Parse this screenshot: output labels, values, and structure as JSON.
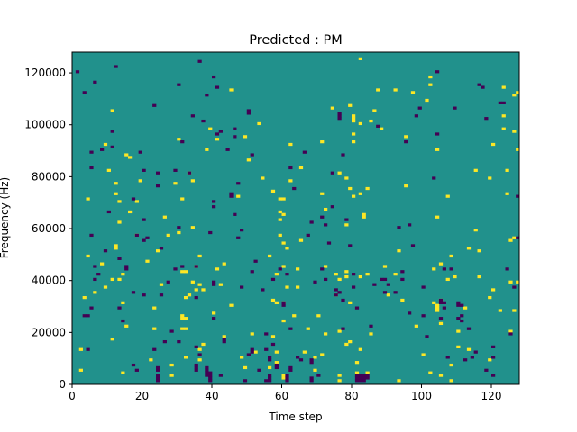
{
  "chart_data": {
    "type": "heatmap",
    "title": "Predicted : PM",
    "xlabel": "Time step",
    "ylabel": "Frequency (Hz)",
    "xlim": [
      0,
      128
    ],
    "ylim": [
      0,
      128000
    ],
    "xticks": [
      0,
      20,
      40,
      60,
      80,
      100,
      120
    ],
    "yticks": [
      0,
      20000,
      40000,
      60000,
      80000,
      100000,
      120000
    ],
    "grid": false,
    "n_time_steps": 128,
    "n_freq_bins": 128,
    "colormap": "viridis",
    "colors": {
      "background_value": "#21918c",
      "high_value": "#fde725",
      "low_value": "#440154"
    },
    "background_level": 0,
    "cell_levels": {
      "high": 1,
      "low": -1
    },
    "high_cells": [
      [
        2,
        5
      ],
      [
        2,
        13
      ],
      [
        3,
        33
      ],
      [
        4,
        49
      ],
      [
        4,
        71
      ],
      [
        6,
        35
      ],
      [
        8,
        46
      ],
      [
        9,
        37
      ],
      [
        9,
        92
      ],
      [
        10,
        82
      ],
      [
        11,
        17
      ],
      [
        11,
        40
      ],
      [
        11,
        105
      ],
      [
        12,
        52
      ],
      [
        12,
        53
      ],
      [
        12,
        73
      ],
      [
        12,
        77
      ],
      [
        13,
        40
      ],
      [
        13,
        62
      ],
      [
        13,
        70
      ],
      [
        14,
        4
      ],
      [
        14,
        31
      ],
      [
        14,
        42
      ],
      [
        15,
        22
      ],
      [
        15,
        88
      ],
      [
        16,
        66
      ],
      [
        16,
        87
      ],
      [
        18,
        57
      ],
      [
        18,
        70
      ],
      [
        19,
        78
      ],
      [
        21,
        47
      ],
      [
        22,
        9
      ],
      [
        23,
        21
      ],
      [
        23,
        29
      ],
      [
        24,
        51
      ],
      [
        25,
        38
      ],
      [
        26,
        64
      ],
      [
        27,
        57
      ],
      [
        28,
        3
      ],
      [
        28,
        7
      ],
      [
        29,
        77
      ],
      [
        30,
        58
      ],
      [
        30,
        94
      ],
      [
        31,
        21
      ],
      [
        31,
        25
      ],
      [
        31,
        26
      ],
      [
        31,
        43
      ],
      [
        31,
        71
      ],
      [
        32,
        10
      ],
      [
        32,
        21
      ],
      [
        32,
        25
      ],
      [
        32,
        33
      ],
      [
        32,
        43
      ],
      [
        33,
        34
      ],
      [
        33,
        81
      ],
      [
        34,
        39
      ],
      [
        34,
        60
      ],
      [
        34,
        78
      ],
      [
        35,
        36
      ],
      [
        35,
        45
      ],
      [
        36,
        9
      ],
      [
        36,
        13
      ],
      [
        36,
        38
      ],
      [
        36,
        49
      ],
      [
        37,
        15
      ],
      [
        37,
        36
      ],
      [
        38,
        90
      ],
      [
        39,
        98
      ],
      [
        40,
        27
      ],
      [
        41,
        44
      ],
      [
        41,
        94
      ],
      [
        42,
        38
      ],
      [
        43,
        18
      ],
      [
        43,
        46
      ],
      [
        45,
        30
      ],
      [
        45,
        113
      ],
      [
        47,
        72
      ],
      [
        48,
        10
      ],
      [
        49,
        6
      ],
      [
        49,
        95
      ],
      [
        50,
        86
      ],
      [
        51,
        19
      ],
      [
        52,
        12
      ],
      [
        53,
        100
      ],
      [
        54,
        79
      ],
      [
        56,
        6
      ],
      [
        56,
        49
      ],
      [
        57,
        18
      ],
      [
        57,
        32
      ],
      [
        57,
        74
      ],
      [
        58,
        8
      ],
      [
        58,
        12
      ],
      [
        58,
        31
      ],
      [
        58,
        42
      ],
      [
        59,
        57
      ],
      [
        59,
        63
      ],
      [
        59,
        66
      ],
      [
        59,
        71
      ],
      [
        60,
        2
      ],
      [
        60,
        3
      ],
      [
        60,
        24
      ],
      [
        60,
        31
      ],
      [
        60,
        45
      ],
      [
        60,
        54
      ],
      [
        60,
        65
      ],
      [
        60,
        71
      ],
      [
        61,
        37
      ],
      [
        61,
        52
      ],
      [
        62,
        78
      ],
      [
        62,
        92
      ],
      [
        63,
        26
      ],
      [
        64,
        37
      ],
      [
        64,
        44
      ],
      [
        65,
        55
      ],
      [
        65,
        83
      ],
      [
        66,
        12
      ],
      [
        67,
        21
      ],
      [
        69,
        5
      ],
      [
        69,
        10
      ],
      [
        70,
        26
      ],
      [
        71,
        11
      ],
      [
        71,
        73
      ],
      [
        71,
        93
      ],
      [
        72,
        19
      ],
      [
        72,
        45
      ],
      [
        72,
        67
      ],
      [
        74,
        106
      ],
      [
        75,
        34
      ],
      [
        75,
        42
      ],
      [
        76,
        1
      ],
      [
        76,
        3
      ],
      [
        76,
        20
      ],
      [
        76,
        40
      ],
      [
        76,
        81
      ],
      [
        78,
        15
      ],
      [
        78,
        41
      ],
      [
        78,
        43
      ],
      [
        78,
        61
      ],
      [
        78,
        79
      ],
      [
        79,
        16
      ],
      [
        79,
        31
      ],
      [
        79,
        75
      ],
      [
        79,
        107
      ],
      [
        80,
        72
      ],
      [
        80,
        93
      ],
      [
        80,
        96
      ],
      [
        80,
        101
      ],
      [
        80,
        102
      ],
      [
        80,
        103
      ],
      [
        81,
        4
      ],
      [
        81,
        8
      ],
      [
        82,
        13
      ],
      [
        82,
        41
      ],
      [
        82,
        73
      ],
      [
        82,
        100
      ],
      [
        82,
        125
      ],
      [
        83,
        64
      ],
      [
        83,
        65
      ],
      [
        84,
        4
      ],
      [
        84,
        42
      ],
      [
        84,
        75
      ],
      [
        85,
        19
      ],
      [
        85,
        101
      ],
      [
        86,
        105
      ],
      [
        87,
        113
      ],
      [
        88,
        98
      ],
      [
        89,
        45
      ],
      [
        90,
        34
      ],
      [
        92,
        42
      ],
      [
        92,
        113
      ],
      [
        93,
        1
      ],
      [
        93,
        51
      ],
      [
        94,
        32
      ],
      [
        95,
        76
      ],
      [
        95,
        95
      ],
      [
        97,
        112
      ],
      [
        98,
        22
      ],
      [
        100,
        11
      ],
      [
        101,
        109
      ],
      [
        102,
        4
      ],
      [
        102,
        115
      ],
      [
        102,
        118
      ],
      [
        103,
        31
      ],
      [
        103,
        44
      ],
      [
        104,
        28
      ],
      [
        104,
        29
      ],
      [
        104,
        30
      ],
      [
        104,
        64
      ],
      [
        104,
        90
      ],
      [
        105,
        3
      ],
      [
        105,
        23
      ],
      [
        105,
        32
      ],
      [
        105,
        46
      ],
      [
        107,
        40
      ],
      [
        107,
        72
      ],
      [
        108,
        1
      ],
      [
        108,
        7
      ],
      [
        108,
        49
      ],
      [
        109,
        41
      ],
      [
        110,
        14
      ],
      [
        110,
        20
      ],
      [
        112,
        29
      ],
      [
        113,
        13
      ],
      [
        113,
        52
      ],
      [
        115,
        59
      ],
      [
        115,
        82
      ],
      [
        116,
        41
      ],
      [
        116,
        51
      ],
      [
        119,
        9
      ],
      [
        119,
        33
      ],
      [
        119,
        79
      ],
      [
        120,
        36
      ],
      [
        120,
        92
      ],
      [
        122,
        28
      ],
      [
        123,
        98
      ],
      [
        123,
        103
      ],
      [
        123,
        114
      ],
      [
        124,
        73
      ],
      [
        124,
        82
      ],
      [
        125,
        20
      ],
      [
        125,
        39
      ],
      [
        125,
        55
      ],
      [
        126,
        28
      ],
      [
        126,
        56
      ],
      [
        126,
        97
      ],
      [
        126,
        111
      ],
      [
        127,
        39
      ],
      [
        127,
        90
      ],
      [
        127,
        112
      ]
    ],
    "low_cells": [
      [
        1,
        120
      ],
      [
        3,
        26
      ],
      [
        3,
        112
      ],
      [
        4,
        13
      ],
      [
        4,
        26
      ],
      [
        5,
        29
      ],
      [
        5,
        57
      ],
      [
        5,
        83
      ],
      [
        5,
        89
      ],
      [
        6,
        116
      ],
      [
        6,
        45
      ],
      [
        6,
        40
      ],
      [
        7,
        42
      ],
      [
        8,
        90
      ],
      [
        9,
        51
      ],
      [
        10,
        66
      ],
      [
        11,
        91
      ],
      [
        11,
        97
      ],
      [
        12,
        122
      ],
      [
        13,
        29
      ],
      [
        13,
        48
      ],
      [
        14,
        24
      ],
      [
        15,
        44
      ],
      [
        15,
        45
      ],
      [
        17,
        7
      ],
      [
        17,
        35
      ],
      [
        17,
        71
      ],
      [
        18,
        5
      ],
      [
        18,
        57
      ],
      [
        19,
        89
      ],
      [
        20,
        82
      ],
      [
        20,
        63
      ],
      [
        20,
        55
      ],
      [
        20,
        34
      ],
      [
        21,
        56
      ],
      [
        23,
        13
      ],
      [
        23,
        107
      ],
      [
        24,
        1
      ],
      [
        24,
        2
      ],
      [
        24,
        3
      ],
      [
        24,
        5
      ],
      [
        24,
        6
      ],
      [
        24,
        76
      ],
      [
        24,
        81
      ],
      [
        25,
        52
      ],
      [
        25,
        34
      ],
      [
        26,
        16
      ],
      [
        27,
        39
      ],
      [
        28,
        20
      ],
      [
        29,
        44
      ],
      [
        29,
        82
      ],
      [
        30,
        115
      ],
      [
        30,
        60
      ],
      [
        30,
        16
      ],
      [
        31,
        93
      ],
      [
        31,
        45
      ],
      [
        33,
        81
      ],
      [
        34,
        103
      ],
      [
        35,
        5
      ],
      [
        35,
        6
      ],
      [
        35,
        7
      ],
      [
        35,
        14
      ],
      [
        35,
        33
      ],
      [
        35,
        45
      ],
      [
        36,
        11
      ],
      [
        36,
        124
      ],
      [
        37,
        101
      ],
      [
        38,
        3
      ],
      [
        38,
        4
      ],
      [
        38,
        5
      ],
      [
        38,
        6
      ],
      [
        38,
        111
      ],
      [
        39,
        1
      ],
      [
        39,
        2
      ],
      [
        39,
        3
      ],
      [
        39,
        4
      ],
      [
        39,
        58
      ],
      [
        40,
        25
      ],
      [
        40,
        38
      ],
      [
        40,
        39
      ],
      [
        40,
        68
      ],
      [
        40,
        70
      ],
      [
        40,
        118
      ],
      [
        41,
        96
      ],
      [
        41,
        114
      ],
      [
        42,
        3
      ],
      [
        42,
        97
      ],
      [
        43,
        16
      ],
      [
        43,
        17
      ],
      [
        44,
        90
      ],
      [
        45,
        73
      ],
      [
        45,
        72
      ],
      [
        46,
        65
      ],
      [
        46,
        95
      ],
      [
        46,
        98
      ],
      [
        47,
        56
      ],
      [
        47,
        77
      ],
      [
        48,
        37
      ],
      [
        48,
        59
      ],
      [
        49,
        1
      ],
      [
        50,
        11
      ],
      [
        50,
        104
      ],
      [
        50,
        105
      ],
      [
        51,
        12
      ],
      [
        51,
        13
      ],
      [
        51,
        88
      ],
      [
        51,
        43
      ],
      [
        52,
        47
      ],
      [
        53,
        5
      ],
      [
        54,
        36
      ],
      [
        55,
        13
      ],
      [
        55,
        1
      ],
      [
        55,
        19
      ],
      [
        56,
        10
      ],
      [
        56,
        9
      ],
      [
        56,
        1
      ],
      [
        56,
        2
      ],
      [
        56,
        3
      ],
      [
        57,
        15
      ],
      [
        57,
        40
      ],
      [
        58,
        6
      ],
      [
        58,
        7
      ],
      [
        59,
        44
      ],
      [
        60,
        30
      ],
      [
        60,
        31
      ],
      [
        61,
        1
      ],
      [
        61,
        2
      ],
      [
        61,
        3
      ],
      [
        61,
        42
      ],
      [
        62,
        6
      ],
      [
        62,
        5
      ],
      [
        62,
        21
      ],
      [
        62,
        83
      ],
      [
        63,
        75
      ],
      [
        64,
        10
      ],
      [
        65,
        9
      ],
      [
        66,
        89
      ],
      [
        67,
        57
      ],
      [
        68,
        62
      ],
      [
        68,
        8
      ],
      [
        68,
        9
      ],
      [
        68,
        1
      ],
      [
        68,
        2
      ],
      [
        69,
        39
      ],
      [
        70,
        3
      ],
      [
        71,
        64
      ],
      [
        71,
        44
      ],
      [
        72,
        61
      ],
      [
        72,
        40
      ],
      [
        73,
        54
      ],
      [
        74,
        68
      ],
      [
        74,
        81
      ],
      [
        75,
        36
      ],
      [
        75,
        34
      ],
      [
        76,
        35
      ],
      [
        76,
        104
      ],
      [
        76,
        103
      ],
      [
        76,
        102
      ],
      [
        77,
        88
      ],
      [
        77,
        21
      ],
      [
        77,
        32
      ],
      [
        78,
        63
      ],
      [
        79,
        53
      ],
      [
        80,
        42
      ],
      [
        80,
        37
      ],
      [
        81,
        29
      ],
      [
        81,
        1
      ],
      [
        81,
        2
      ],
      [
        81,
        3
      ],
      [
        82,
        1
      ],
      [
        82,
        2
      ],
      [
        82,
        3
      ],
      [
        83,
        1
      ],
      [
        83,
        2
      ],
      [
        83,
        3
      ],
      [
        84,
        2
      ],
      [
        84,
        3
      ],
      [
        85,
        22
      ],
      [
        86,
        38
      ],
      [
        87,
        99
      ],
      [
        88,
        40
      ],
      [
        89,
        35
      ],
      [
        89,
        40
      ],
      [
        90,
        38
      ],
      [
        92,
        35
      ],
      [
        93,
        60
      ],
      [
        94,
        43
      ],
      [
        94,
        40
      ],
      [
        95,
        93
      ],
      [
        96,
        27
      ],
      [
        96,
        61
      ],
      [
        97,
        53
      ],
      [
        98,
        103
      ],
      [
        99,
        106
      ],
      [
        100,
        37
      ],
      [
        100,
        26
      ],
      [
        101,
        18
      ],
      [
        103,
        79
      ],
      [
        104,
        120
      ],
      [
        104,
        96
      ],
      [
        105,
        31
      ],
      [
        105,
        32
      ],
      [
        105,
        25
      ],
      [
        106,
        31
      ],
      [
        106,
        44
      ],
      [
        106,
        29
      ],
      [
        107,
        10
      ],
      [
        108,
        44
      ],
      [
        109,
        106
      ],
      [
        110,
        30
      ],
      [
        110,
        31
      ],
      [
        110,
        25
      ],
      [
        111,
        24
      ],
      [
        111,
        26
      ],
      [
        111,
        30
      ],
      [
        112,
        9
      ],
      [
        113,
        21
      ],
      [
        114,
        10
      ],
      [
        115,
        12
      ],
      [
        116,
        115
      ],
      [
        117,
        114
      ],
      [
        118,
        5
      ],
      [
        118,
        102
      ],
      [
        120,
        3
      ],
      [
        120,
        14
      ],
      [
        120,
        10
      ],
      [
        122,
        108
      ],
      [
        123,
        108
      ],
      [
        124,
        44
      ],
      [
        125,
        19
      ],
      [
        127,
        72
      ],
      [
        127,
        56
      ],
      [
        126,
        37
      ]
    ]
  }
}
